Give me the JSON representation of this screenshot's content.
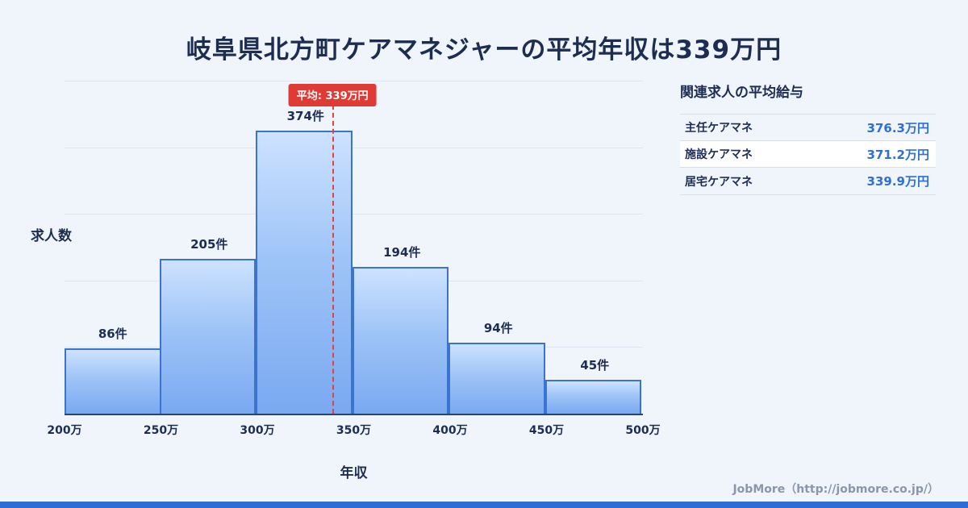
{
  "title": "岐阜県北方町ケアマネジャーの平均年収は339万円",
  "chart_data": {
    "type": "bar",
    "title": "岐阜県北方町ケアマネジャーの平均年収は339万円",
    "categories": [
      "200万-250万",
      "250万-300万",
      "300万-350万",
      "350万-400万",
      "400万-450万",
      "450万-500万"
    ],
    "values": [
      86,
      205,
      374,
      194,
      94,
      45
    ],
    "bar_labels": [
      "86件",
      "205件",
      "374件",
      "194件",
      "94件",
      "45件"
    ],
    "x_ticks": [
      "200万",
      "250万",
      "300万",
      "350万",
      "400万",
      "450万",
      "500万"
    ],
    "x_range": [
      200,
      500
    ],
    "xlabel": "年収",
    "ylabel": "求人数",
    "ylim": [
      0,
      440
    ],
    "grid": "horizontal",
    "average": {
      "value": 339,
      "label": "平均: 339万円"
    }
  },
  "side_panel": {
    "heading": "関連求人の平均給与",
    "rows": [
      {
        "label": "主任ケアマネ",
        "value": "376.3万円"
      },
      {
        "label": "施設ケアマネ",
        "value": "371.2万円"
      },
      {
        "label": "居宅ケアマネ",
        "value": "339.9万円"
      }
    ]
  },
  "footer": {
    "credit": "JobMore（http://jobmore.co.jp/）"
  },
  "colors": {
    "background": "#f0f4fb",
    "title_navy": "#1d2d52",
    "bar_fill_top": "#cde2ff",
    "bar_fill_bottom": "#7aa9f1",
    "bar_border": "#3a74d0",
    "average_red": "#e03a35",
    "value_blue": "#2e6fd8",
    "accent_bar_blue": "#2f6cd6",
    "credit_gray": "#8b96a8"
  }
}
